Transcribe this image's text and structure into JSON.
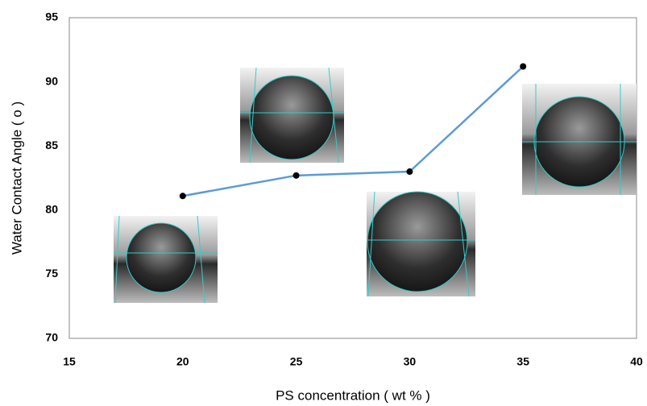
{
  "chart_data": {
    "type": "line",
    "x_label": "PS concentration ( wt % )",
    "y_label": "Water Contact Angle ( o )",
    "x": [
      20,
      25,
      30,
      35
    ],
    "series": [
      {
        "color": "#5b9bd5",
        "marker_color": "#000000",
        "values": [
          81.1,
          82.7,
          83.0,
          91.2
        ]
      }
    ],
    "xlim": [
      15,
      40
    ],
    "xticks": [
      15,
      20,
      25,
      30,
      35,
      40
    ],
    "ylim": [
      70,
      95
    ],
    "yticks": [
      70,
      75,
      80,
      85,
      90,
      95
    ],
    "grid": false
  }
}
